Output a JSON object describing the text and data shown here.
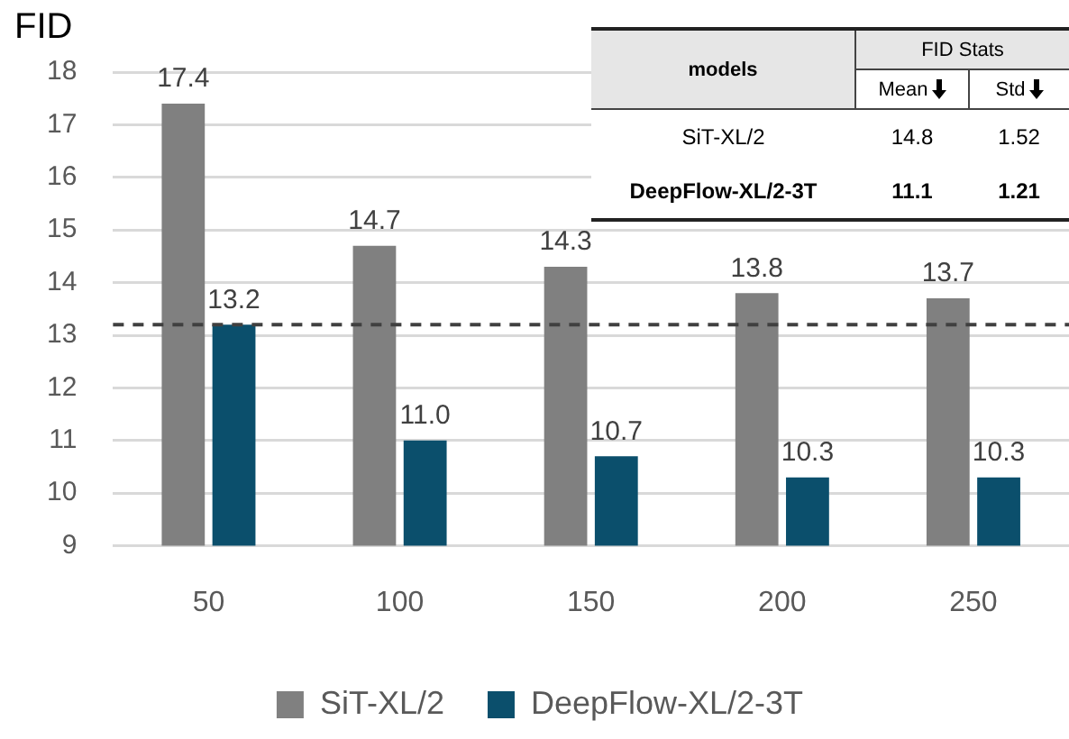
{
  "chart_data": {
    "type": "bar",
    "ylabel": "FID",
    "categories": [
      "50",
      "100",
      "150",
      "200",
      "250"
    ],
    "series": [
      {
        "name": "SiT-XL/2",
        "color": "#808080",
        "values": [
          17.4,
          14.7,
          14.3,
          13.8,
          13.7
        ],
        "value_labels": [
          "17.4",
          "14.7",
          "14.3",
          "13.8",
          "13.7"
        ]
      },
      {
        "name": "DeepFlow-XL/2-3T",
        "color": "#0b4f6c",
        "values": [
          13.2,
          11.0,
          10.7,
          10.3,
          10.3
        ],
        "value_labels": [
          "13.2",
          "11.0",
          "10.7",
          "10.3",
          "10.3"
        ]
      }
    ],
    "ylim": [
      9,
      18
    ],
    "yticks": [
      9,
      10,
      11,
      12,
      13,
      14,
      15,
      16,
      17,
      18
    ],
    "grid": "y",
    "legend": "bottom",
    "ref_lines": [
      {
        "axis": "y",
        "value": 13.2,
        "color": "#404040",
        "line_style": "dashed"
      }
    ],
    "annotations": [
      "models",
      "FID Stats",
      "Mean",
      "Std",
      "SiT-XL/2",
      "14.8",
      "1.52",
      "DeepFlow-XL/2-3T",
      "11.1",
      "1.21"
    ]
  }
}
